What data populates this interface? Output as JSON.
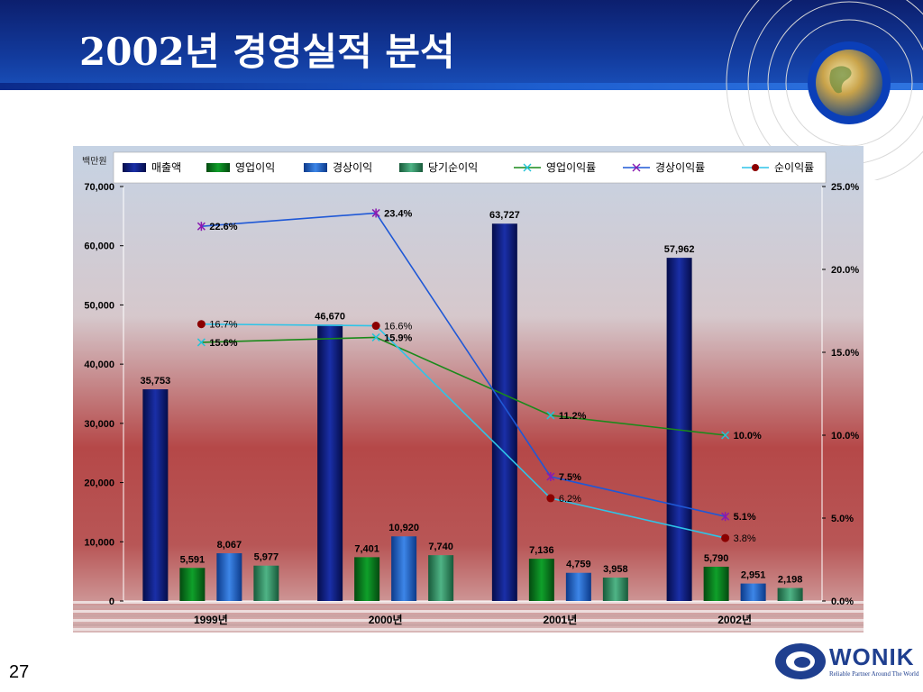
{
  "slide": {
    "title": "2002년 경영실적 분석",
    "page_number": "27"
  },
  "logo": {
    "wordmark": "WONIK",
    "tagline": "Reliable Partner Around The World"
  },
  "colors": {
    "header_blue": "#12379a",
    "sales": "#0a1a7a",
    "operating_profit": "#0a7a1e",
    "ordinary_profit": "#1e5ec8",
    "net_profit": "#2f8a62",
    "operating_margin": "#1a8a1a",
    "ordinary_margin": "#1f58d6",
    "net_margin": "#2ec4e8",
    "net_margin_marker": "#8b0000"
  },
  "icons": [
    "globe-icon",
    "wonik-logo-icon"
  ],
  "chart_data": {
    "type": "bar",
    "unit_label": "백만원",
    "categories": [
      "1999년",
      "2000년",
      "2001년",
      "2002년"
    ],
    "y_left": {
      "ylim": [
        0,
        70000
      ],
      "ticks": [
        "0",
        "10,000",
        "20,000",
        "30,000",
        "40,000",
        "50,000",
        "60,000",
        "70,000"
      ]
    },
    "y_right": {
      "ylim": [
        0,
        25
      ],
      "ticks": [
        "0.0%",
        "5.0%",
        "10.0%",
        "15.0%",
        "20.0%",
        "25.0%"
      ]
    },
    "grid": false,
    "legend_position": "top",
    "bar_series": [
      {
        "name": "매출액",
        "values": [
          35753,
          46670,
          63727,
          57962
        ],
        "labels": [
          "35,753",
          "46,670",
          "63,727",
          "57,962"
        ]
      },
      {
        "name": "영업이익",
        "values": [
          5591,
          7401,
          7136,
          5790
        ],
        "labels": [
          "5,591",
          "7,401",
          "7,136",
          "5,790"
        ]
      },
      {
        "name": "경상이익",
        "values": [
          8067,
          10920,
          4759,
          2951
        ],
        "labels": [
          "8,067",
          "10,920",
          "4,759",
          "2,951"
        ]
      },
      {
        "name": "당기순이익",
        "values": [
          5977,
          7740,
          3958,
          2198
        ],
        "labels": [
          "5,977",
          "7,740",
          "3,958",
          "2,198"
        ]
      }
    ],
    "line_series": [
      {
        "name": "영업이익률",
        "values": [
          15.6,
          15.9,
          11.2,
          10.0
        ],
        "labels": [
          "15.6%",
          "15.9%",
          "11.2%",
          "10.0%"
        ]
      },
      {
        "name": "경상이익률",
        "values": [
          22.6,
          23.4,
          7.5,
          5.1
        ],
        "labels": [
          "22.6%",
          "23.4%",
          "7.5%",
          "5.1%"
        ]
      },
      {
        "name": "순이익률",
        "values": [
          16.7,
          16.6,
          6.2,
          3.8
        ],
        "labels": [
          "16.7%",
          "16.6%",
          "6.2%",
          "3.8%"
        ]
      }
    ]
  }
}
